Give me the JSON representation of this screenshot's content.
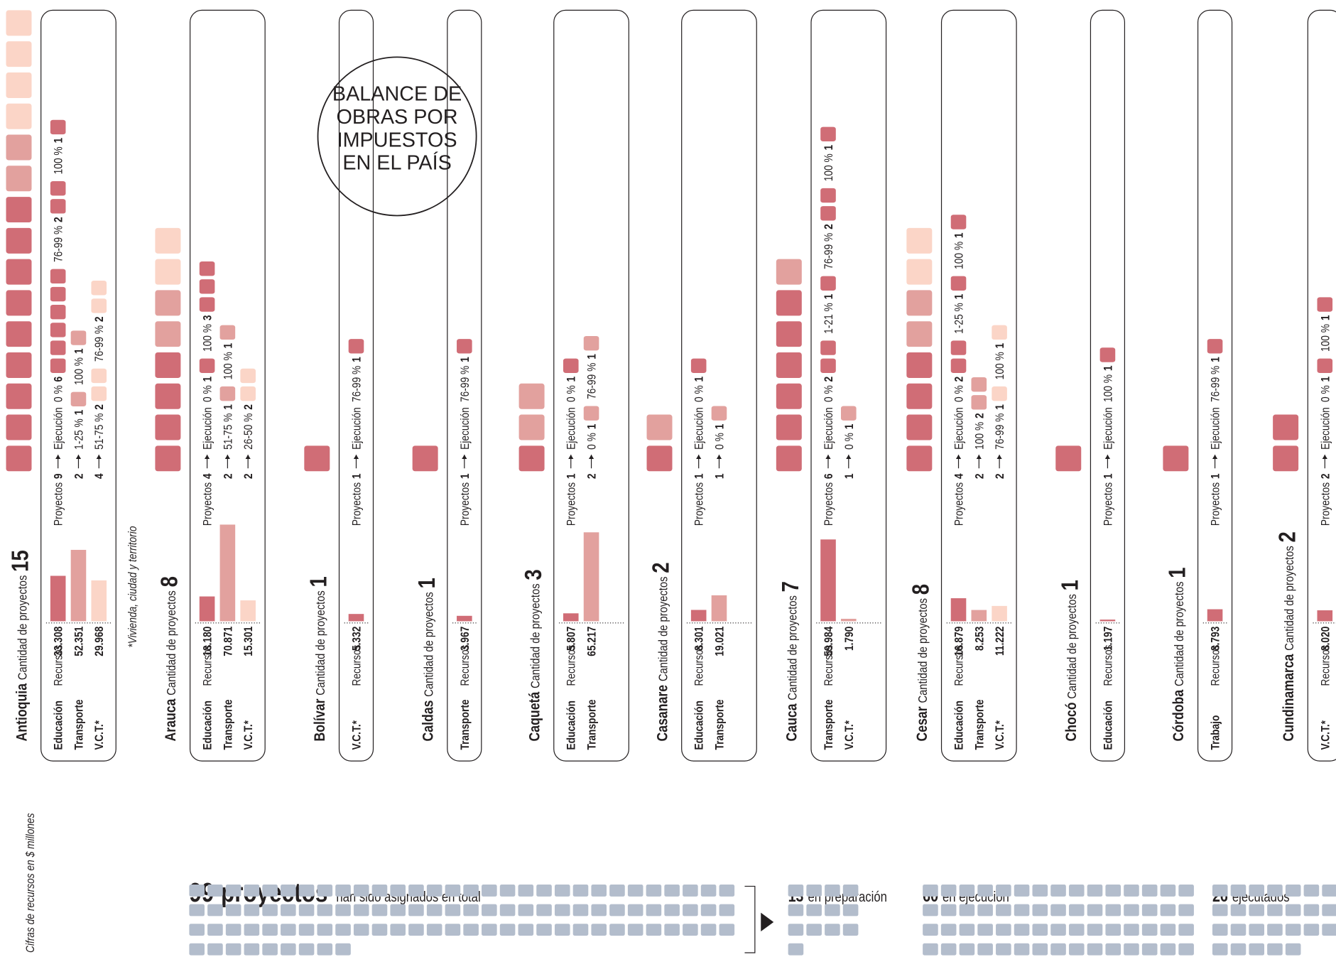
{
  "title": [
    "BALANCE DE",
    "OBRAS POR",
    "IMPUESTOS",
    "EN EL PAÍS"
  ],
  "notes": [
    "Cifras de recursos en $ millones",
    "*Vivienda, ciudad y territorio"
  ],
  "labels": {
    "cantidad": "Cantidad de proyectos",
    "recursos": "Recursos",
    "proyectos": "Proyectos",
    "ejecucion": "Ejecución"
  },
  "departments": [
    {
      "name": "Antioquia",
      "count": 15,
      "sectors": [
        {
          "name": "Educación",
          "recursos": {
            "value": 33308,
            "label": "33.308"
          },
          "proyectos": 9,
          "ejecucion": [
            {
              "range": "0 %",
              "n": 6
            },
            {
              "range": "76-99 %",
              "n": 2
            },
            {
              "range": "100 %",
              "n": 1
            }
          ]
        },
        {
          "name": "Transporte",
          "recursos": {
            "value": 52351,
            "label": "52.351"
          },
          "proyectos": 2,
          "ejecucion": [
            {
              "range": "1-25 %",
              "n": 1
            },
            {
              "range": "100 %",
              "n": 1
            }
          ]
        },
        {
          "name": "V.C.T.*",
          "recursos": {
            "value": 29968,
            "label": "29.968"
          },
          "proyectos": 4,
          "ejecucion": [
            {
              "range": "51-75 %",
              "n": 2
            },
            {
              "range": "76-99 %",
              "n": 2
            }
          ]
        }
      ]
    },
    {
      "name": "Arauca",
      "count": 8,
      "sectors": [
        {
          "name": "Educación",
          "recursos": {
            "value": 18180,
            "label": "18.180"
          },
          "proyectos": 4,
          "ejecucion": [
            {
              "range": "0 %",
              "n": 1
            },
            {
              "range": "100 %",
              "n": 3
            }
          ]
        },
        {
          "name": "Transporte",
          "recursos": {
            "value": 70871,
            "label": "70.871"
          },
          "proyectos": 2,
          "ejecucion": [
            {
              "range": "51-75 %",
              "n": 1
            },
            {
              "range": "100 %",
              "n": 1
            }
          ]
        },
        {
          "name": "V.C.T.*",
          "recursos": {
            "value": 15301,
            "label": "15.301"
          },
          "proyectos": 2,
          "ejecucion": [
            {
              "range": "26-50 %",
              "n": 2
            }
          ]
        }
      ]
    },
    {
      "name": "Bolívar",
      "count": 1,
      "sectors": [
        {
          "name": "V.C.T.*",
          "recursos": {
            "value": 5332,
            "label": "5.332"
          },
          "proyectos": 1,
          "ejecucion": [
            {
              "range": "76-99 %",
              "n": 1
            }
          ]
        }
      ]
    },
    {
      "name": "Caldas",
      "count": 1,
      "sectors": [
        {
          "name": "Transporte",
          "recursos": {
            "value": 3967,
            "label": "3.967"
          },
          "proyectos": 1,
          "ejecucion": [
            {
              "range": "76-99 %",
              "n": 1
            }
          ]
        }
      ]
    },
    {
      "name": "Caquetá",
      "count": 3,
      "sectors": [
        {
          "name": "Educación",
          "recursos": {
            "value": 5807,
            "label": "5.807"
          },
          "proyectos": 1,
          "ejecucion": [
            {
              "range": "0 %",
              "n": 1
            }
          ]
        },
        {
          "name": "Transporte",
          "recursos": {
            "value": 65217,
            "label": "65.217"
          },
          "proyectos": 2,
          "ejecucion": [
            {
              "range": "0 %",
              "n": 1
            },
            {
              "range": "76-99 %",
              "n": 1
            }
          ]
        }
      ]
    },
    {
      "name": "Casanare",
      "count": 2,
      "sectors": [
        {
          "name": "Educación",
          "recursos": {
            "value": 8301,
            "label": "8.301"
          },
          "proyectos": 1,
          "ejecucion": [
            {
              "range": "0 %",
              "n": 1
            }
          ]
        },
        {
          "name": "Transporte",
          "recursos": {
            "value": 19021,
            "label": "19.021"
          },
          "proyectos": 1,
          "ejecucion": [
            {
              "range": "0 %",
              "n": 1
            }
          ]
        }
      ]
    },
    {
      "name": "Cauca",
      "count": 7,
      "sectors": [
        {
          "name": "Transporte",
          "recursos": {
            "value": 59984,
            "label": "59.984"
          },
          "proyectos": 6,
          "ejecucion": [
            {
              "range": "0 %",
              "n": 2
            },
            {
              "range": "1-21 %",
              "n": 1
            },
            {
              "range": "76-99 %",
              "n": 2
            },
            {
              "range": "100 %",
              "n": 1
            }
          ]
        },
        {
          "name": "V.C.T.*",
          "recursos": {
            "value": 1790,
            "label": "1.790"
          },
          "proyectos": 1,
          "ejecucion": [
            {
              "range": "0 %",
              "n": 1
            }
          ]
        }
      ]
    },
    {
      "name": "Cesar",
      "count": 8,
      "sectors": [
        {
          "name": "Educación",
          "recursos": {
            "value": 16879,
            "label": "16.879"
          },
          "proyectos": 4,
          "ejecucion": [
            {
              "range": "0 %",
              "n": 2
            },
            {
              "range": "1-25 %",
              "n": 1
            },
            {
              "range": "100 %",
              "n": 1
            }
          ]
        },
        {
          "name": "Transporte",
          "recursos": {
            "value": 8253,
            "label": "8.253"
          },
          "proyectos": 2,
          "ejecucion": [
            {
              "range": "100 %",
              "n": 2
            }
          ]
        },
        {
          "name": "V.C.T.*",
          "recursos": {
            "value": 11222,
            "label": "11.222"
          },
          "proyectos": 2,
          "ejecucion": [
            {
              "range": "76-99 %",
              "n": 1
            },
            {
              "range": "100 %",
              "n": 1
            }
          ]
        }
      ]
    },
    {
      "name": "Chocó",
      "count": 1,
      "sectors": [
        {
          "name": "Educación",
          "recursos": {
            "value": 1197,
            "label": "1.197"
          },
          "proyectos": 1,
          "ejecucion": [
            {
              "range": "100 %",
              "n": 1
            }
          ]
        }
      ]
    },
    {
      "name": "Córdoba",
      "count": 1,
      "sectors": [
        {
          "name": "Trabajo",
          "recursos": {
            "value": 8793,
            "label": "8.793"
          },
          "proyectos": 1,
          "ejecucion": [
            {
              "range": "76-99 %",
              "n": 1
            }
          ]
        }
      ]
    },
    {
      "name": "Cundinamarca",
      "count": 2,
      "sectors": [
        {
          "name": "V.C.T.*",
          "recursos": {
            "value": 8020,
            "label": "8.020"
          },
          "proyectos": 2,
          "ejecucion": [
            {
              "range": "0 %",
              "n": 1
            },
            {
              "range": "100 %",
              "n": 1
            }
          ]
        }
      ]
    }
  ],
  "summary": {
    "total": 99,
    "total_word": "proyectos",
    "total_text": "han sido asignados en total",
    "statuses": [
      {
        "count": 13,
        "label": "en preparación"
      },
      {
        "count": 60,
        "label": "en ejecución"
      },
      {
        "count": 26,
        "label": "ejecutados"
      }
    ]
  }
}
